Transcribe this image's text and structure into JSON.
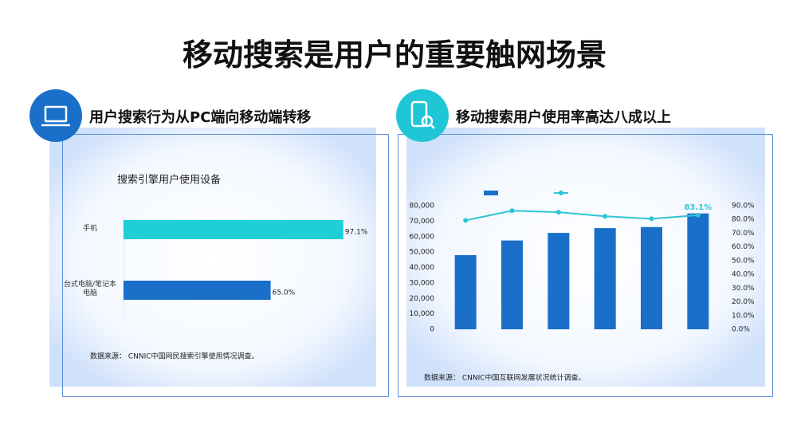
{
  "header": {
    "title": "移动搜索是用户的重要触网场景"
  },
  "panels": [
    {
      "title": "用户搜索行为从PC端向移动端转移"
    },
    {
      "title": "移动搜索用户使用率高达八成以上"
    }
  ],
  "chart_data": [
    {
      "type": "hbar",
      "title": "搜索引擎用户使用设备",
      "categories": [
        "手机",
        "台式电脑/笔记本电脑"
      ],
      "values": [
        97.1,
        65.0
      ],
      "value_labels": [
        "97.1%",
        "65.0%"
      ],
      "colors": [
        "#1ecfd6",
        "#1a6fc9"
      ],
      "xlim": [
        0,
        100
      ],
      "source": "数据来源： CNNIC中国网民搜索引擎使用情况调查。"
    },
    {
      "type": "combo",
      "categories": [
        null,
        null,
        null,
        null,
        null,
        null
      ],
      "series": [
        {
          "color": "#1a6fc9",
          "values": [
            48000,
            57500,
            62400,
            65500,
            66200,
            75000
          ]
        },
        {
          "color": "#2ec5d3",
          "axis": "y2",
          "values": [
            79.3,
            86.4,
            85.3,
            82.3,
            80.5,
            83.1
          ],
          "value_labels": [
            null,
            null,
            null,
            null,
            null,
            "83.1%"
          ]
        }
      ],
      "ylim": [
        0,
        80000
      ],
      "yticks": [
        0,
        {
          "value": 10000,
          "label": "10,000"
        },
        {
          "value": 20000,
          "label": "20,000"
        },
        {
          "value": 30000,
          "label": "30,000"
        },
        {
          "value": 40000,
          "label": "40,000"
        },
        {
          "value": 50000,
          "label": "50,000"
        },
        {
          "value": 60000,
          "label": "60,000"
        },
        {
          "value": 70000,
          "label": "70,000"
        },
        {
          "value": 80000,
          "label": "80,000"
        }
      ],
      "y2lim": [
        0,
        90
      ],
      "y2ticks": [
        {
          "value": 0,
          "label": "0.0%"
        },
        {
          "value": 10,
          "label": "10.0%"
        },
        {
          "value": 20,
          "label": "20.0%"
        },
        {
          "value": 30,
          "label": "30.0%"
        },
        {
          "value": 40,
          "label": "40.0%"
        },
        {
          "value": 50,
          "label": "50.0%"
        },
        {
          "value": 60,
          "label": "60.0%"
        },
        {
          "value": 70,
          "label": "70.0%"
        },
        {
          "value": 80,
          "label": "80.0%"
        },
        {
          "value": 90,
          "label": "90.0%"
        }
      ],
      "source": "数据来源： CNNIC中国互联网发展状况统计调查。"
    }
  ]
}
